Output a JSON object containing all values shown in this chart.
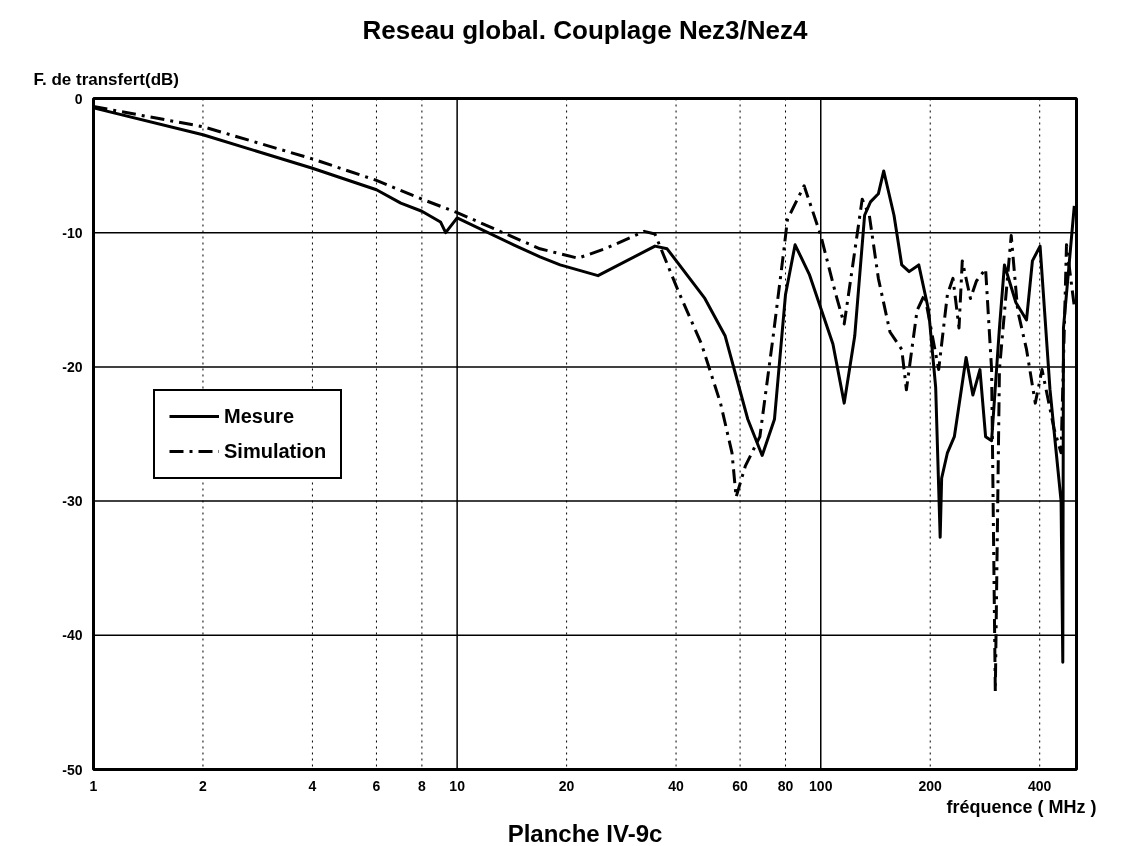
{
  "chart_data": {
    "type": "line",
    "title": "Reseau global. Couplage Nez3/Nez4",
    "ylabel": "F. de transfert(dB)",
    "xlabel": "fréquence ( MHz )",
    "annotations": [
      "Planche IV-9c"
    ],
    "log": "x",
    "xlim": [
      1,
      505
    ],
    "ylim": [
      -50,
      0
    ],
    "xticks": [
      1,
      2,
      4,
      6,
      8,
      10,
      20,
      40,
      60,
      80,
      100,
      200,
      400
    ],
    "yticks": [
      0,
      -10,
      -20,
      -30,
      -40,
      -50
    ],
    "grid": true,
    "legend": "left",
    "marker": "none",
    "series": [
      {
        "name": "Mesure",
        "color": "#000000",
        "line_style": "solid",
        "x": [
          1,
          2,
          4,
          6,
          7,
          8,
          9,
          9.3,
          10,
          14.3,
          16.9,
          19.2,
          24.4,
          35,
          37.8,
          48,
          54.6,
          63,
          69,
          74.6,
          80,
          85,
          93,
          108,
          116,
          124,
          132,
          137,
          144,
          149,
          159,
          167,
          175,
          186,
          198,
          207,
          213,
          215,
          223,
          233,
          251,
          262,
          274,
          284,
          295,
          310,
          320,
          344,
          368,
          382,
          401,
          427,
          442,
          458,
          463,
          465,
          498
        ],
        "values": [
          -0.7,
          -2.7,
          -5.2,
          -6.8,
          -7.8,
          -8.4,
          -9.2,
          -10,
          -8.9,
          -10.9,
          -11.8,
          -12.4,
          -13.2,
          -11.0,
          -11.2,
          -14.9,
          -17.7,
          -23.9,
          -26.6,
          -23.9,
          -14.6,
          -10.9,
          -13.1,
          -18.3,
          -22.7,
          -17.7,
          -8.7,
          -7.7,
          -7.1,
          -5.4,
          -8.7,
          -12.4,
          -12.9,
          -12.4,
          -15.8,
          -21.5,
          -32.7,
          -28.3,
          -26.4,
          -25.2,
          -19.3,
          -22.1,
          -20.2,
          -25.2,
          -25.5,
          -17.1,
          -12.4,
          -15.2,
          -16.5,
          -12.1,
          -11.0,
          -21.7,
          -25.8,
          -30,
          -42,
          -17.1,
          -8.0
        ]
      },
      {
        "name": "Simulation",
        "color": "#000000",
        "line_style": "dashdot",
        "x": [
          1,
          2,
          4,
          6,
          8,
          10,
          16.9,
          21.5,
          25.5,
          32.7,
          35,
          40.5,
          47,
          53,
          57,
          58.5,
          62,
          68,
          74,
          79,
          81,
          90,
          100,
          110,
          116,
          121,
          130,
          136,
          144,
          155,
          167,
          172,
          184,
          193,
          211,
          223,
          231,
          240,
          245,
          258,
          268,
          284,
          295,
          302,
          310,
          334,
          348,
          368,
          389,
          406,
          438,
          458,
          474,
          498
        ],
        "values": [
          -0.6,
          -2.1,
          -4.5,
          -6.1,
          -7.5,
          -8.5,
          -11.2,
          -11.9,
          -11.2,
          -9.9,
          -10.1,
          -14.3,
          -18.3,
          -22.7,
          -26.4,
          -29.7,
          -27.4,
          -25.2,
          -17.7,
          -11.5,
          -9.0,
          -6.5,
          -10.2,
          -14.6,
          -16.8,
          -13.4,
          -7.5,
          -8.7,
          -13.4,
          -17.4,
          -18.7,
          -21.7,
          -15.8,
          -14.6,
          -20.2,
          -14.6,
          -13.4,
          -17.1,
          -12.1,
          -14.9,
          -13.6,
          -12.7,
          -20.2,
          -44.2,
          -20.2,
          -10.2,
          -15.8,
          -18.7,
          -22.7,
          -20.2,
          -24.6,
          -26.4,
          -10.9,
          -15.5
        ]
      }
    ]
  }
}
